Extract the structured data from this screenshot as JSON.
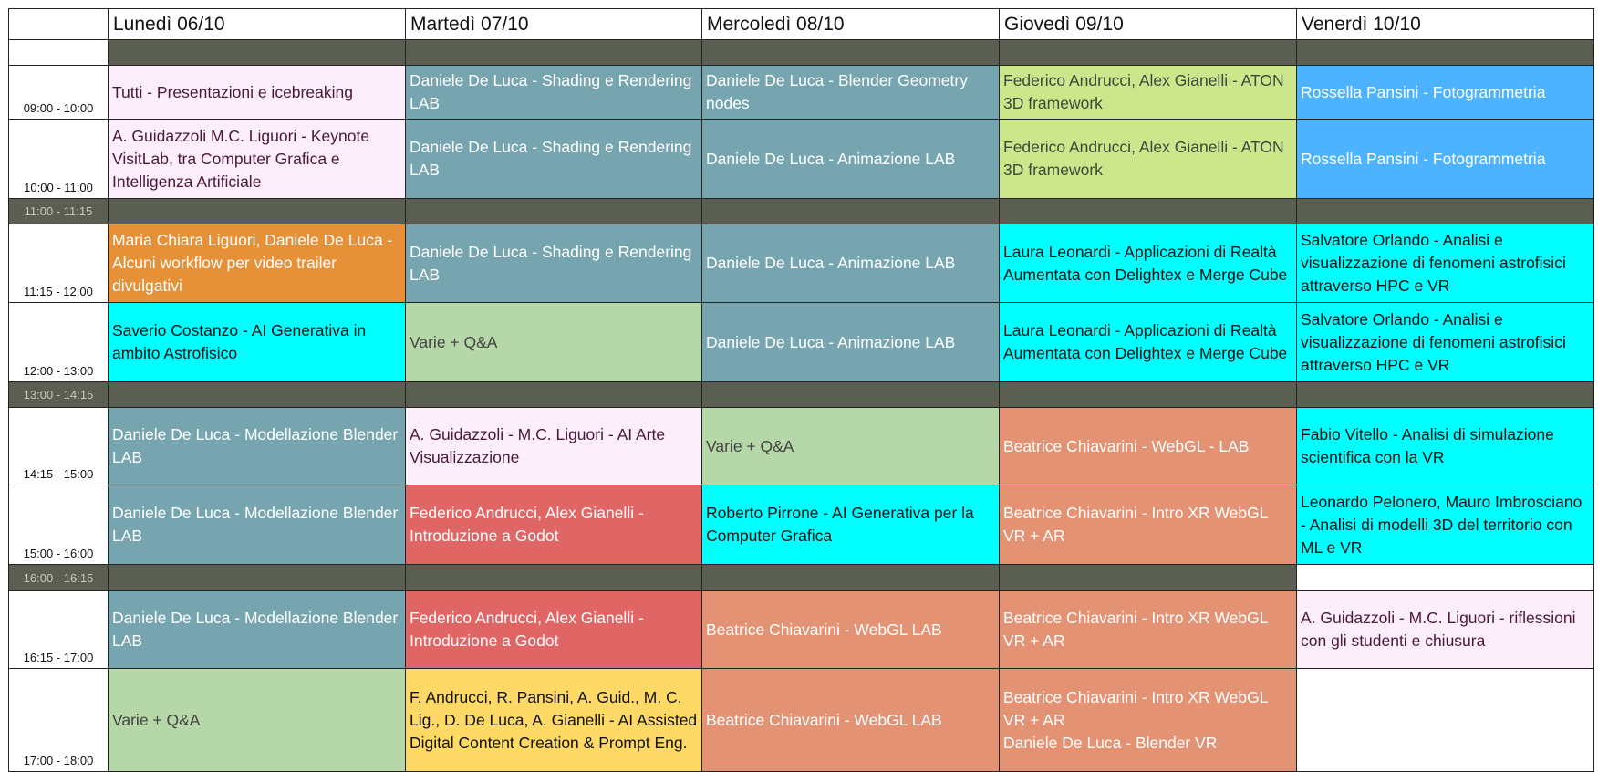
{
  "headers": [
    "",
    "Lunedì 06/10",
    "Martedì 07/10",
    "Mercoledì 08/10",
    "Giovedì 09/10",
    "Venerdì 10/10"
  ],
  "colors": {
    "pink": {
      "bg": "#fdeefc",
      "fg": "#4a1838"
    },
    "teal": {
      "bg": "#76a5af",
      "fg": "#ffffff"
    },
    "lime": {
      "bg": "#cce68c",
      "fg": "#3d473a"
    },
    "blue": {
      "bg": "#4db3ff",
      "fg": "#ffffff"
    },
    "orange": {
      "bg": "#e69138",
      "fg": "#ffffff"
    },
    "cyan": {
      "bg": "#00ffff",
      "fg": "#111111"
    },
    "green": {
      "bg": "#b6d7a8",
      "fg": "#444444"
    },
    "salmon": {
      "bg": "#e39273",
      "fg": "#ffffff"
    },
    "red": {
      "bg": "#e06666",
      "fg": "#ffffff"
    },
    "yellow": {
      "bg": "#ffd966",
      "fg": "#111111"
    },
    "dark": {
      "bg": "#5b5f52",
      "fg": "#ffffff"
    },
    "white": {
      "bg": "#ffffff",
      "fg": "#111111"
    }
  },
  "rows": [
    {
      "time": "",
      "break": true,
      "cells": [
        {
          "text": "",
          "color": "dark"
        },
        {
          "text": "",
          "color": "dark"
        },
        {
          "text": "",
          "color": "dark"
        },
        {
          "text": "",
          "color": "dark"
        },
        {
          "text": "",
          "color": "dark"
        }
      ]
    },
    {
      "time": "09:00 - 10:00",
      "cells": [
        {
          "text": "Tutti - Presentazioni e icebreaking",
          "color": "pink"
        },
        {
          "text": "Daniele De Luca - Shading e Rendering LAB",
          "color": "teal"
        },
        {
          "text": "Daniele De Luca - Blender Geometry nodes",
          "color": "teal"
        },
        {
          "text": "Federico Andrucci, Alex Gianelli - ATON 3D framework",
          "color": "lime"
        },
        {
          "text": "Rossella Pansini - Fotogrammetria",
          "color": "blue"
        }
      ]
    },
    {
      "time": "10:00 - 11:00",
      "cells": [
        {
          "text": "A. Guidazzoli M.C. Liguori - Keynote VisitLab, tra Computer Grafica e Intelligenza Artificiale",
          "color": "pink"
        },
        {
          "text": "Daniele De Luca - Shading e Rendering LAB",
          "color": "teal"
        },
        {
          "text": "Daniele De Luca - Animazione LAB",
          "color": "teal"
        },
        {
          "text": "Federico Andrucci, Alex Gianelli - ATON 3D framework",
          "color": "lime"
        },
        {
          "text": "Rossella Pansini - Fotogrammetria",
          "color": "blue"
        }
      ]
    },
    {
      "time": "11:00 - 11:15",
      "break": true,
      "cells": [
        {
          "text": "",
          "color": "dark"
        },
        {
          "text": "",
          "color": "dark"
        },
        {
          "text": "",
          "color": "dark"
        },
        {
          "text": "",
          "color": "dark"
        },
        {
          "text": "",
          "color": "dark"
        }
      ]
    },
    {
      "time": "11:15 - 12:00",
      "cells": [
        {
          "text": "Maria Chiara Liguori, Daniele De Luca - Alcuni workflow per video trailer divulgativi",
          "color": "orange"
        },
        {
          "text": "Daniele De Luca - Shading e Rendering LAB",
          "color": "teal"
        },
        {
          "text": "Daniele De Luca - Animazione LAB",
          "color": "teal"
        },
        {
          "text": "Laura Leonardi - Applicazioni di Realtà Aumentata con Delightex e Merge Cube",
          "color": "cyan"
        },
        {
          "text": "Salvatore Orlando - Analisi e visualizzazione di fenomeni astrofisici attraverso HPC e VR",
          "color": "cyan"
        }
      ]
    },
    {
      "time": "12:00 - 13:00",
      "cells": [
        {
          "text": "Saverio Costanzo - AI Generativa in ambito Astrofisico",
          "color": "cyan"
        },
        {
          "text": "Varie + Q&A",
          "color": "green"
        },
        {
          "text": "Daniele De Luca - Animazione LAB",
          "color": "teal"
        },
        {
          "text": "Laura Leonardi - Applicazioni di Realtà Aumentata con Delightex e Merge Cube",
          "color": "cyan"
        },
        {
          "text": "Salvatore Orlando - Analisi e visualizzazione di fenomeni astrofisici attraverso HPC e VR",
          "color": "cyan"
        }
      ]
    },
    {
      "time": "13:00 - 14:15",
      "break": true,
      "cells": [
        {
          "text": "",
          "color": "dark"
        },
        {
          "text": "",
          "color": "dark"
        },
        {
          "text": "",
          "color": "dark"
        },
        {
          "text": "",
          "color": "dark"
        },
        {
          "text": "",
          "color": "dark"
        }
      ]
    },
    {
      "time": "14:15 - 15:00",
      "cells": [
        {
          "text": "Daniele De Luca - Modellazione Blender LAB",
          "color": "teal"
        },
        {
          "text": "A. Guidazzoli - M.C. Liguori - AI Arte Visualizzazione",
          "color": "pink"
        },
        {
          "text": "Varie + Q&A",
          "color": "green"
        },
        {
          "text": "Beatrice Chiavarini - WebGL - LAB",
          "color": "salmon"
        },
        {
          "text": "Fabio Vitello - Analisi di simulazione scientifica con la VR",
          "color": "cyan"
        }
      ]
    },
    {
      "time": "15:00 - 16:00",
      "cells": [
        {
          "text": "Daniele De Luca - Modellazione Blender LAB",
          "color": "teal"
        },
        {
          "text": "Federico Andrucci, Alex Gianelli - Introduzione a Godot",
          "color": "red"
        },
        {
          "text": "Roberto Pirrone - AI Generativa per la Computer Grafica",
          "color": "cyan"
        },
        {
          "text": "Beatrice Chiavarini - Intro XR WebGL VR + AR",
          "color": "salmon"
        },
        {
          "text": "Leonardo Pelonero,  Mauro Imbrosciano - Analisi di modelli 3D del territorio con ML e  VR",
          "color": "cyan"
        }
      ]
    },
    {
      "time": "16:00 - 16:15",
      "break": true,
      "cells": [
        {
          "text": "",
          "color": "dark"
        },
        {
          "text": "",
          "color": "dark"
        },
        {
          "text": "",
          "color": "dark"
        },
        {
          "text": "",
          "color": "dark"
        },
        {
          "text": "",
          "color": "white"
        }
      ]
    },
    {
      "time": "16:15 - 17:00",
      "cells": [
        {
          "text": "Daniele De Luca - Modellazione Blender LAB",
          "color": "teal"
        },
        {
          "text": "Federico Andrucci, Alex Gianelli - Introduzione a Godot",
          "color": "red"
        },
        {
          "text": "Beatrice Chiavarini - WebGL LAB",
          "color": "salmon"
        },
        {
          "text": "Beatrice Chiavarini - Intro XR WebGL VR + AR",
          "color": "salmon"
        },
        {
          "text": "A. Guidazzoli - M.C. Liguori - riflessioni con gli studenti e chiusura",
          "color": "pink"
        }
      ]
    },
    {
      "time": "17:00 - 18:00",
      "cells": [
        {
          "text": "Varie + Q&A",
          "color": "green"
        },
        {
          "text": "F. Andrucci, R. Pansini, A. Guid., M. C. Lig., D. De Luca, A. Gianelli - AI Assisted Digital Content Creation & Prompt Eng.",
          "color": "yellow"
        },
        {
          "text": "Beatrice Chiavarini - WebGL LAB",
          "color": "salmon"
        },
        {
          "text": "Beatrice Chiavarini - Intro XR WebGL VR + AR\nDaniele De Luca - Blender VR",
          "color": "salmon"
        },
        {
          "text": "",
          "color": "white"
        }
      ]
    }
  ]
}
